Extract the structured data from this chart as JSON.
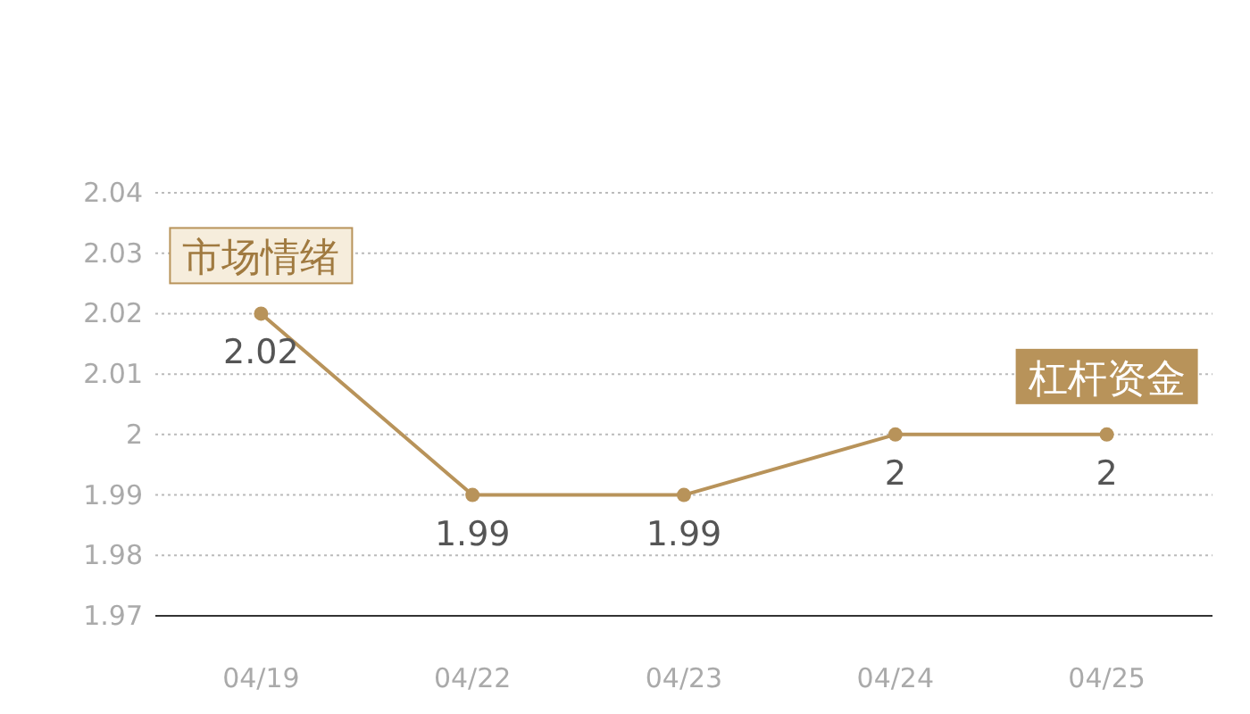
{
  "chart_data": {
    "type": "line",
    "categories": [
      "04/19",
      "04/22",
      "04/23",
      "04/24",
      "04/25"
    ],
    "series": [
      {
        "color": "#b8935a",
        "values": [
          2.02,
          1.99,
          1.99,
          2,
          2
        ]
      }
    ],
    "ylim": [
      1.97,
      2.04
    ],
    "yticks": [
      1.97,
      1.98,
      1.99,
      2,
      2.01,
      2.02,
      2.03,
      2.04
    ],
    "grid": "y",
    "marker": "circle",
    "line_style": "solid",
    "data_labels": true,
    "annotations": [
      {
        "text": "市场情绪",
        "x": "04/19",
        "y": 2.02
      },
      {
        "text": "杠杆资金",
        "x": "04/25",
        "y": 2
      }
    ]
  }
}
